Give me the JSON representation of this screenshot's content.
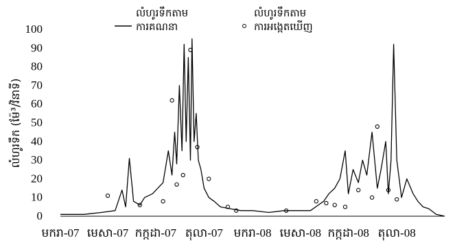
{
  "chart_data": {
    "type": "line",
    "ylabel": "លំហូរទឹក (ម៉ែ³/វិនាទី)",
    "ylim": [
      0,
      100
    ],
    "yticks": [
      "0",
      "10",
      "20",
      "30",
      "40",
      "50",
      "60",
      "70",
      "80",
      "90",
      "100"
    ],
    "xlim": [
      "2007-01-01",
      "2008-12-31"
    ],
    "xticks": [
      {
        "date": "2007-01-01",
        "label": "មករា-07"
      },
      {
        "date": "2007-04-01",
        "label": "មេសា-07"
      },
      {
        "date": "2007-07-01",
        "label": "កក្កដា-07"
      },
      {
        "date": "2007-10-01",
        "label": "តុលា-07"
      },
      {
        "date": "2008-01-01",
        "label": "មករា-08"
      },
      {
        "date": "2008-04-01",
        "label": "មេសា-08"
      },
      {
        "date": "2008-07-01",
        "label": "កក្កដា-08"
      },
      {
        "date": "2008-10-01",
        "label": "តុលា-08"
      }
    ],
    "grid": false,
    "legend": "top",
    "series": [
      {
        "name": "លំហូរទឹកតាមការគណនា",
        "style": "line",
        "color": "#000000",
        "x": [
          "2007-01-01",
          "2007-02-15",
          "2007-03-20",
          "2007-04-15",
          "2007-04-28",
          "2007-05-05",
          "2007-05-12",
          "2007-05-20",
          "2007-06-01",
          "2007-06-10",
          "2007-06-25",
          "2007-07-05",
          "2007-07-15",
          "2007-07-25",
          "2007-08-01",
          "2007-08-06",
          "2007-08-10",
          "2007-08-15",
          "2007-08-20",
          "2007-08-24",
          "2007-08-28",
          "2007-09-01",
          "2007-09-05",
          "2007-09-08",
          "2007-09-12",
          "2007-09-16",
          "2007-09-20",
          "2007-09-25",
          "2007-10-01",
          "2007-10-10",
          "2007-10-20",
          "2007-11-01",
          "2007-11-20",
          "2007-12-10",
          "2008-01-01",
          "2008-02-01",
          "2008-03-01",
          "2008-04-01",
          "2008-04-20",
          "2008-05-05",
          "2008-05-15",
          "2008-05-25",
          "2008-06-05",
          "2008-06-15",
          "2008-06-25",
          "2008-07-01",
          "2008-07-10",
          "2008-07-20",
          "2008-07-28",
          "2008-08-05",
          "2008-08-15",
          "2008-08-25",
          "2008-09-01",
          "2008-09-10",
          "2008-09-15",
          "2008-09-20",
          "2008-09-25",
          "2008-10-01",
          "2008-10-10",
          "2008-10-20",
          "2008-11-01",
          "2008-11-10",
          "2008-11-20",
          "2008-12-01",
          "2008-12-15",
          "2008-12-31"
        ],
        "y": [
          1,
          1,
          2,
          3,
          14,
          5,
          31,
          8,
          6,
          10,
          12,
          15,
          18,
          35,
          22,
          45,
          28,
          70,
          35,
          92,
          40,
          85,
          30,
          95,
          40,
          55,
          30,
          25,
          15,
          10,
          8,
          5,
          4,
          3,
          3,
          2,
          3,
          3,
          3,
          6,
          8,
          12,
          15,
          20,
          35,
          12,
          25,
          18,
          30,
          22,
          45,
          15,
          25,
          40,
          12,
          30,
          92,
          30,
          10,
          20,
          12,
          8,
          5,
          4,
          1,
          0
        ]
      },
      {
        "name": "លំហូរទឹកតាមការអង្កេតឃើញ",
        "style": "scatter",
        "color": "#000000",
        "x": [
          "2007-04-01",
          "2007-06-01",
          "2007-07-15",
          "2007-08-01",
          "2007-08-10",
          "2007-08-22",
          "2007-09-05",
          "2007-09-18",
          "2007-10-10",
          "2007-11-15",
          "2007-12-01",
          "2008-03-05",
          "2008-05-01",
          "2008-05-20",
          "2008-06-05",
          "2008-06-25",
          "2008-07-20",
          "2008-08-15",
          "2008-08-25",
          "2008-09-15",
          "2008-10-01"
        ],
        "y": [
          11,
          6,
          8,
          62,
          17,
          22,
          89,
          37,
          20,
          5,
          3,
          3,
          8,
          7,
          6,
          5,
          14,
          10,
          48,
          14,
          9
        ]
      }
    ]
  }
}
